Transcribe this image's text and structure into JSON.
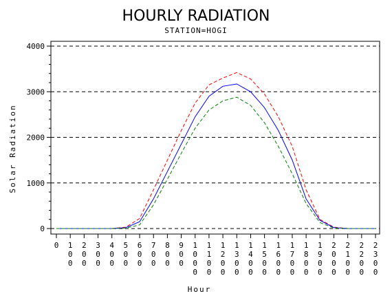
{
  "chart_data": {
    "type": "line",
    "title": "HOURLY RADIATION",
    "subtitle": "STATION=HOGI",
    "xlabel": "Hour",
    "ylabel": "Solar Radiation",
    "x": [
      0,
      100,
      200,
      300,
      400,
      500,
      600,
      700,
      800,
      900,
      1000,
      1100,
      1200,
      1300,
      1400,
      1500,
      1600,
      1700,
      1800,
      1900,
      2000,
      2100,
      2200,
      2300
    ],
    "xlim": [
      0,
      2300
    ],
    "ylim": [
      0,
      4000
    ],
    "yticks": [
      0,
      1000,
      2000,
      3000,
      4000
    ],
    "grid": "horizontal dashed",
    "series": [
      {
        "color": "#ff0000",
        "style": "dashed",
        "values": [
          0,
          0,
          0,
          0,
          0,
          30,
          220,
          850,
          1500,
          2150,
          2750,
          3150,
          3300,
          3420,
          3280,
          2950,
          2450,
          1800,
          850,
          200,
          30,
          0,
          0,
          0
        ]
      },
      {
        "color": "#0000ff",
        "style": "solid",
        "values": [
          0,
          0,
          0,
          0,
          0,
          20,
          150,
          650,
          1250,
          1850,
          2450,
          2900,
          3120,
          3170,
          3000,
          2650,
          2150,
          1500,
          650,
          180,
          20,
          0,
          0,
          0
        ]
      },
      {
        "color": "#008000",
        "style": "dashed",
        "values": [
          0,
          0,
          0,
          0,
          0,
          10,
          80,
          520,
          1080,
          1650,
          2200,
          2600,
          2800,
          2880,
          2700,
          2320,
          1800,
          1200,
          550,
          130,
          10,
          0,
          0,
          0
        ]
      }
    ]
  }
}
